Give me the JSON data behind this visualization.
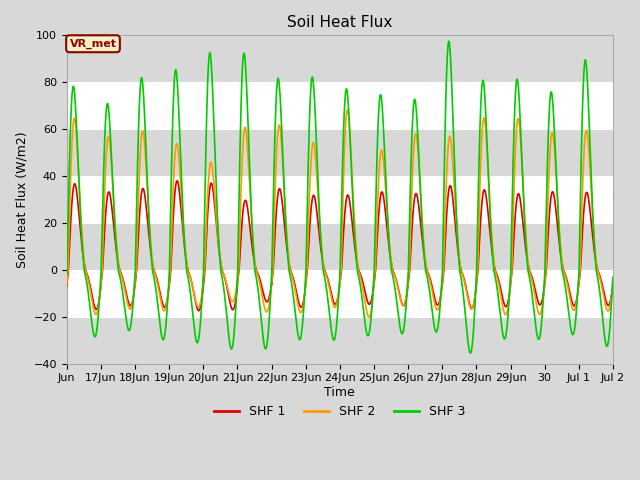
{
  "title": "Soil Heat Flux",
  "ylabel": "Soil Heat Flux (W/m2)",
  "xlabel": "Time",
  "ylim": [
    -40,
    100
  ],
  "fig_bg_color": "#d8d8d8",
  "plot_bg_color": "#ffffff",
  "annotation_text": "VR_met",
  "annotation_bg": "#f5f0c8",
  "annotation_border": "#8B0000",
  "legend_entries": [
    "SHF 1",
    "SHF 2",
    "SHF 3"
  ],
  "colors": [
    "#dd0000",
    "#ff9900",
    "#00cc00"
  ],
  "line_width": 1.2,
  "yticks": [
    -40,
    -20,
    0,
    20,
    40,
    60,
    80,
    100
  ],
  "tick_labels": [
    "Jun",
    "17Jun",
    "18Jun",
    "19Jun",
    "20Jun",
    "21Jun",
    "22Jun",
    "23Jun",
    "24Jun",
    "25Jun",
    "26Jun",
    "27Jun",
    "28Jun",
    "29Jun",
    "30",
    "Jul 1",
    "Jul 2"
  ],
  "shf1_max": 34,
  "shf1_min": -13,
  "shf2_max": 61,
  "shf2_min": -15,
  "shf3_max": 89,
  "shf3_min": -27,
  "n_days": 16,
  "pts_per_day": 288
}
